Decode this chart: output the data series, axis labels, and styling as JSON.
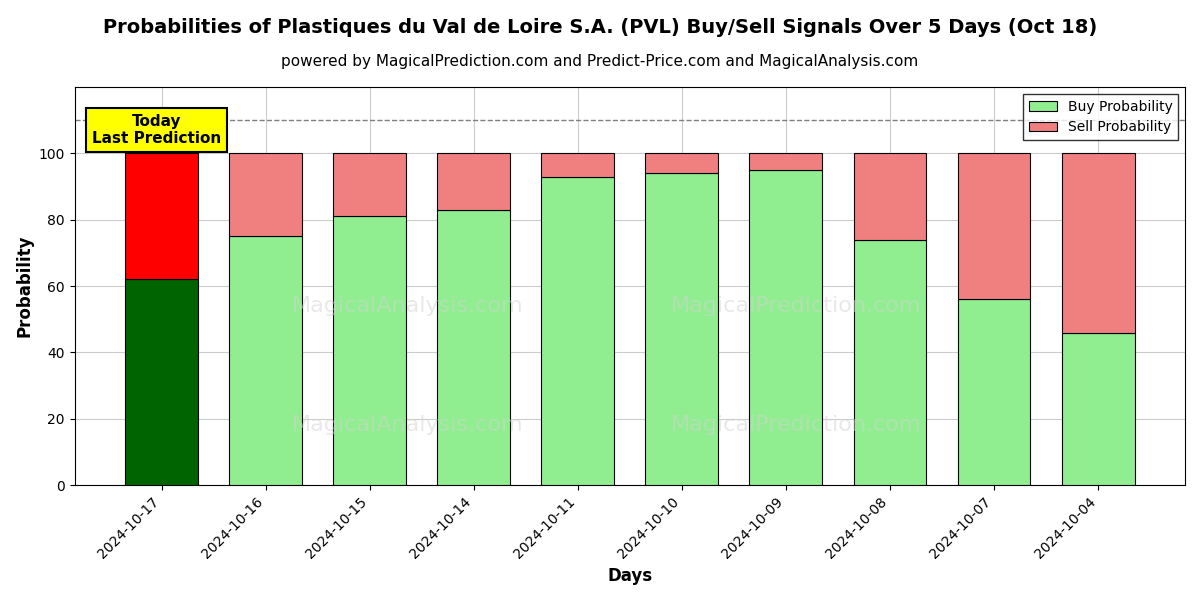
{
  "title": "Probabilities of Plastiques du Val de Loire S.A. (PVL) Buy/Sell Signals Over 5 Days (Oct 18)",
  "subtitle": "powered by MagicalPrediction.com and Predict-Price.com and MagicalAnalysis.com",
  "xlabel": "Days",
  "ylabel": "Probability",
  "categories": [
    "2024-10-17",
    "2024-10-16",
    "2024-10-15",
    "2024-10-14",
    "2024-10-11",
    "2024-10-10",
    "2024-10-09",
    "2024-10-08",
    "2024-10-07",
    "2024-10-04"
  ],
  "buy_values": [
    62,
    75,
    81,
    83,
    93,
    94,
    95,
    74,
    56,
    46
  ],
  "sell_values": [
    38,
    25,
    19,
    17,
    7,
    6,
    5,
    26,
    44,
    54
  ],
  "buy_colors": [
    "#006400",
    "#90EE90",
    "#90EE90",
    "#90EE90",
    "#90EE90",
    "#90EE90",
    "#90EE90",
    "#90EE90",
    "#90EE90",
    "#90EE90"
  ],
  "sell_colors": [
    "#FF0000",
    "#F08080",
    "#F08080",
    "#F08080",
    "#F08080",
    "#F08080",
    "#F08080",
    "#F08080",
    "#F08080",
    "#F08080"
  ],
  "legend_buy_color": "#90EE90",
  "legend_sell_color": "#F08080",
  "ylim": [
    0,
    120
  ],
  "yticks": [
    0,
    20,
    40,
    60,
    80,
    100
  ],
  "dashed_line_y": 110,
  "annotation_text": "Today\nLast Prediction",
  "bg_color": "#ffffff",
  "grid_color": "#cccccc",
  "title_fontsize": 14,
  "subtitle_fontsize": 11,
  "axis_label_fontsize": 12,
  "tick_fontsize": 10,
  "bar_width": 0.7
}
